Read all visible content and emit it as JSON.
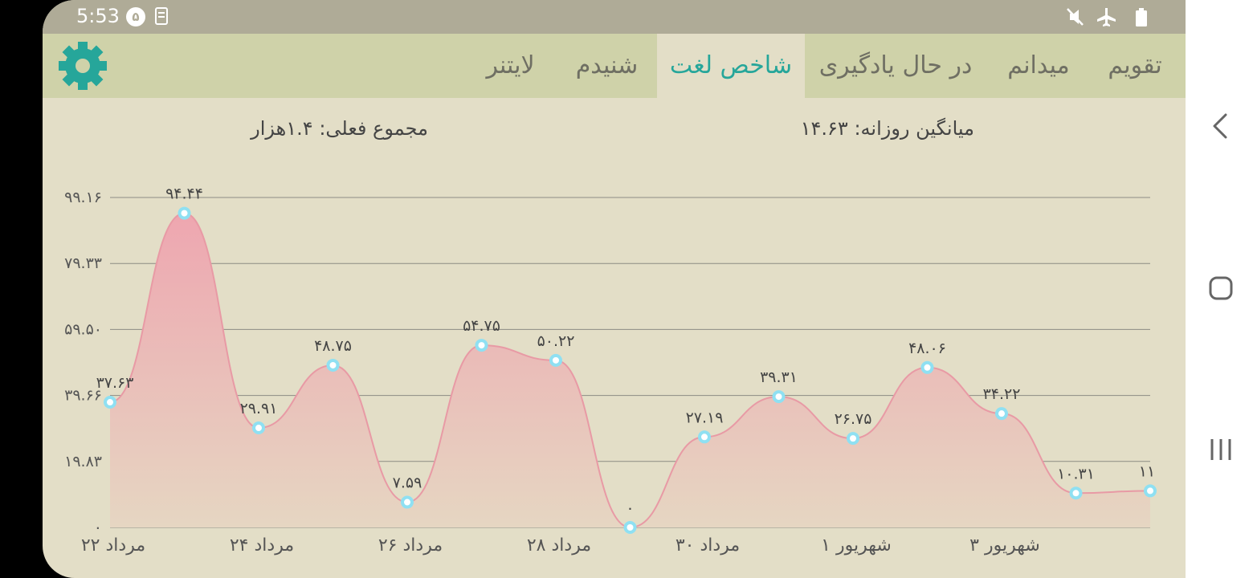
{
  "status_bar": {
    "time": "5:53",
    "notification_badge": "۵",
    "icons": [
      "notification-digit-icon",
      "document-icon",
      "mute-icon",
      "airplane-mode-icon",
      "battery-icon"
    ]
  },
  "app_bar": {
    "tabs": [
      {
        "label": "تقویم",
        "active": false
      },
      {
        "label": "میدانم",
        "active": false
      },
      {
        "label": "در حال یادگیری",
        "active": false
      },
      {
        "label": "شاخص لغت",
        "active": true
      },
      {
        "label": "شنیدم",
        "active": false
      },
      {
        "label": "لایتنر",
        "active": false
      }
    ],
    "settings_icon": "gear-icon",
    "accent_color": "#26a69a"
  },
  "stats": {
    "daily_average": "میانگین روزانه: ۱۴.۶۳",
    "current_total": "مجموع فعلی: ۱.۴هزار"
  },
  "chart_data": {
    "type": "area",
    "ylim": [
      0,
      99.16
    ],
    "y_ticks": [
      "۰",
      "۱۹.۸۳",
      "۳۹.۶۶",
      "۵۹.۵۰",
      "۷۹.۳۳",
      "۹۹.۱۶"
    ],
    "x_tick_labels": [
      "۲۲ مرداد",
      "۲۴ مرداد",
      "۲۶ مرداد",
      "۲۸ مرداد",
      "۳۰ مرداد",
      "۱ شهریور",
      "۳ شهریور"
    ],
    "values": [
      37.63,
      94.44,
      29.91,
      48.75,
      7.59,
      54.75,
      50.22,
      0,
      27.19,
      39.31,
      26.75,
      48.06,
      34.22,
      10.31,
      11
    ],
    "value_labels": [
      "۳۷.۶۳",
      "۹۴.۴۴",
      "۲۹.۹۱",
      "۴۸.۷۵",
      "۷.۵۹",
      "۵۴.۷۵",
      "۵۰.۲۲",
      "۰",
      "۲۷.۱۹",
      "۳۹.۳۱",
      "۲۶.۷۵",
      "۴۸.۰۶",
      "۳۴.۲۲",
      "۱۰.۳۱",
      "۱۱"
    ],
    "fill_color": "#eeaab2",
    "line_color": "#e89aa5",
    "point_color": "#8fe0f2",
    "grid": true
  },
  "nav_bar": {
    "buttons": [
      "back-icon",
      "home-icon",
      "recents-icon"
    ]
  }
}
